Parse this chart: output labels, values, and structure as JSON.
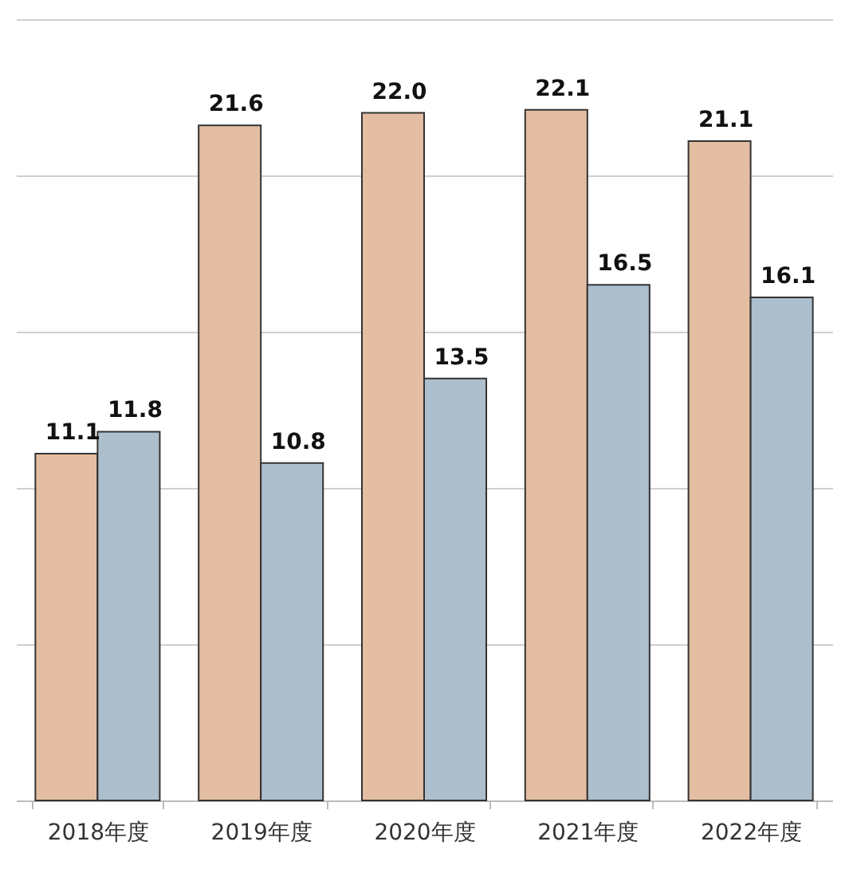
{
  "chart_data": {
    "type": "bar",
    "categories": [
      "2018年度",
      "2019年度",
      "2020年度",
      "2021年度",
      "2022年度"
    ],
    "series": [
      {
        "color": "#e3bea2",
        "values": [
          11.1,
          21.6,
          22.0,
          22.1,
          21.1
        ],
        "value_labels": [
          "11.1",
          "21.6",
          "22.0",
          "22.1",
          "21.1"
        ]
      },
      {
        "color": "#adbfcd",
        "values": [
          11.8,
          10.8,
          13.5,
          16.5,
          16.1
        ],
        "value_labels": [
          "11.8",
          "10.8",
          "13.5",
          "16.5",
          "16.1"
        ]
      }
    ],
    "ylim": [
      0,
      25
    ],
    "yticks": [
      0,
      5,
      10,
      15,
      20,
      25
    ],
    "grid": "y",
    "tick_labels": "x",
    "legend": false
  }
}
